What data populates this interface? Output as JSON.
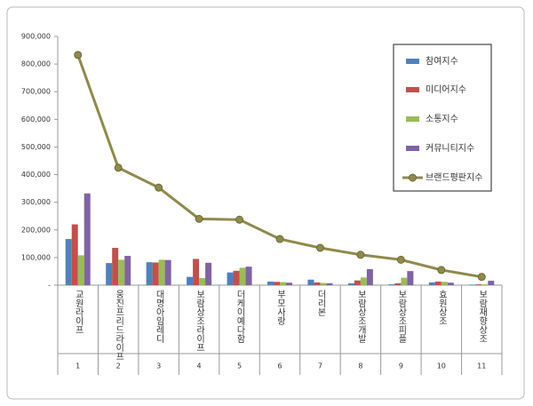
{
  "chart_data": {
    "type": "bar-line",
    "categories": [
      "교원라이프",
      "웅진프리드라이프",
      "대명아임레디",
      "보람상조라이프",
      "더케이예다함",
      "부모사랑",
      "더리본",
      "보람상조개발",
      "보람상조피플",
      "효원상조",
      "보람재향상조"
    ],
    "ranks": [
      1,
      2,
      3,
      4,
      5,
      6,
      7,
      8,
      9,
      10,
      11
    ],
    "series": [
      {
        "name": "참여지수",
        "type": "bar",
        "color": "#4f81bd",
        "values": [
          167000,
          80000,
          83000,
          30000,
          46000,
          13000,
          20000,
          7000,
          3000,
          10000,
          2000
        ]
      },
      {
        "name": "미디어지수",
        "type": "bar",
        "color": "#c0504d",
        "values": [
          220000,
          135000,
          82000,
          95000,
          52000,
          12000,
          10000,
          17000,
          7000,
          13000,
          3000
        ]
      },
      {
        "name": "소통지수",
        "type": "bar",
        "color": "#9bbb59",
        "values": [
          108000,
          92000,
          92000,
          26000,
          63000,
          11000,
          8000,
          28000,
          27000,
          12000,
          3000
        ]
      },
      {
        "name": "커뮤니티지수",
        "type": "bar",
        "color": "#8064a2",
        "values": [
          332000,
          106000,
          91000,
          81000,
          67000,
          9000,
          7000,
          58000,
          51000,
          9000,
          16000
        ]
      },
      {
        "name": "브랜드평판지수",
        "type": "line",
        "color": "#8f8a4c",
        "values": [
          833000,
          425000,
          353000,
          240000,
          237000,
          167000,
          135000,
          110000,
          92000,
          55000,
          30000
        ]
      }
    ],
    "ylim": [
      0,
      900000
    ],
    "yticks": [
      {
        "value": 0,
        "label": "-"
      },
      {
        "value": 100000,
        "label": "100,000"
      },
      {
        "value": 200000,
        "label": "200,000"
      },
      {
        "value": 300000,
        "label": "300,000"
      },
      {
        "value": 400000,
        "label": "400,000"
      },
      {
        "value": 500000,
        "label": "500,000"
      },
      {
        "value": 600000,
        "label": "600,000"
      },
      {
        "value": 700000,
        "label": "700,000"
      },
      {
        "value": 800000,
        "label": "800,000"
      },
      {
        "value": 900000,
        "label": "900,000"
      }
    ],
    "legend": "top-right"
  }
}
